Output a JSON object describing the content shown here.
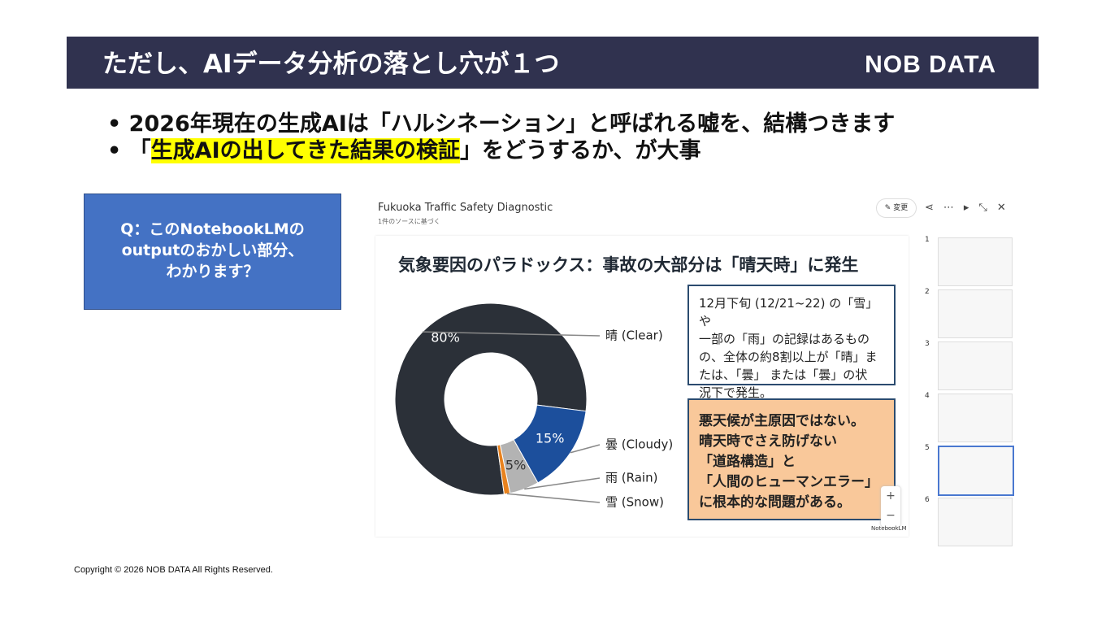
{
  "header": {
    "title": "ただし、AIデータ分析の落とし穴が１つ",
    "logo": "NOB DATA"
  },
  "bullets": [
    {
      "text": "2026年現在の生成AIは「ハルシネーション」と呼ばれる嘘を、結構つきます"
    },
    {
      "before": "「",
      "highlight": "生成AIの出してきた結果の検証",
      "after": "」をどうするか、が大事"
    }
  ],
  "question": {
    "lines": [
      "Q：このNotebookLMの",
      "outputのおかしい部分、",
      "わかります？"
    ]
  },
  "screenshot": {
    "title": "Fukuoka Traffic Safety Diagnostic",
    "subtitle": "1件のソースに基づく",
    "edit_button": "変更",
    "slide_title": "気象要因のパラドックス：事故の大部分は「晴天時」に発生",
    "note_box": [
      "12月下旬 (12/21~22) の「雪」や",
      "一部の「雨」の記録はあるもの",
      "の、全体の約8割以上が「晴」ま",
      "たは、「曇」 または「曇」の状",
      "況下で発生。"
    ],
    "conclusion_box": [
      "悪天候が主原因ではない。",
      "晴天時でさえ防げない",
      "「道路構造」と",
      "「人間のヒューマンエラー」",
      "に根本的な問題がある。"
    ],
    "brand": "NotebookLM",
    "thumbnails": [
      "1",
      "2",
      "3",
      "4",
      "5",
      "6"
    ]
  },
  "chart_data": {
    "type": "donut",
    "categories": [
      "晴 (Clear)",
      "曇 (Cloudy)",
      "雨 (Rain)",
      "雪 (Snow)"
    ],
    "values": [
      80,
      15,
      5,
      1
    ],
    "value_labels": [
      "80%",
      "15%",
      "5%",
      null
    ],
    "colors": [
      "#2b3038",
      "#1c4f9c",
      "#b3b3b3",
      "#e8821e"
    ]
  },
  "footer": {
    "copyright": "Copyright © 2026 NOB DATA All Rights Reserved."
  }
}
